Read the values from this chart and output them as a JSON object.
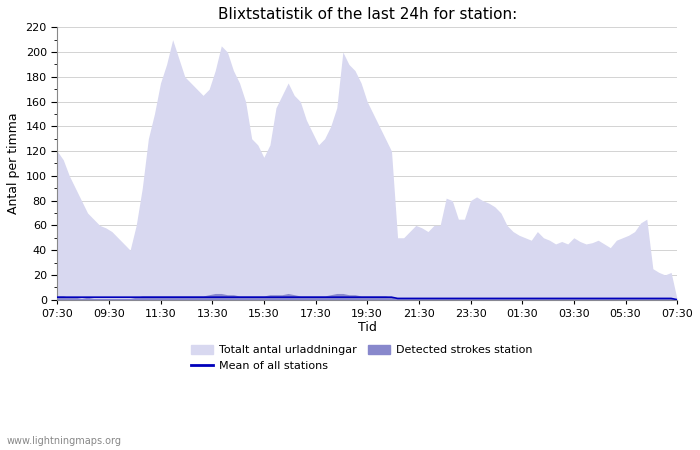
{
  "title": "Blixtstatistik of the last 24h for station:",
  "xlabel": "Tid",
  "ylabel": "Antal per timma",
  "watermark": "www.lightningmaps.org",
  "x_ticks": [
    "07:30",
    "09:30",
    "11:30",
    "13:30",
    "15:30",
    "17:30",
    "19:30",
    "21:30",
    "23:30",
    "01:30",
    "03:30",
    "05:30",
    "07:30"
  ],
  "ylim": [
    0,
    220
  ],
  "yticks": [
    0,
    20,
    40,
    60,
    80,
    100,
    120,
    140,
    160,
    180,
    200,
    220
  ],
  "color_area_light": "#d8d8f0",
  "color_area_dark": "#8888cc",
  "color_line": "#0000bb",
  "legend_labels": [
    "Totalt antal urladdningar",
    "Detected strokes station",
    "Mean of all stations"
  ],
  "totalt_antal": [
    120,
    113,
    100,
    90,
    80,
    70,
    65,
    60,
    58,
    55,
    50,
    45,
    40,
    60,
    90,
    130,
    150,
    175,
    190,
    210,
    195,
    180,
    175,
    170,
    165,
    170,
    185,
    205,
    200,
    185,
    175,
    160,
    130,
    125,
    115,
    125,
    155,
    165,
    175,
    165,
    160,
    145,
    135,
    125,
    130,
    140,
    155,
    200,
    190,
    185,
    175,
    160,
    150,
    140,
    130,
    120,
    50,
    50,
    55,
    60,
    58,
    55,
    60,
    60,
    82,
    80,
    65,
    65,
    80,
    83,
    80,
    78,
    75,
    70,
    60,
    55,
    52,
    50,
    48,
    55,
    50,
    48,
    45,
    47,
    45,
    50,
    47,
    45,
    46,
    48,
    45,
    42,
    48,
    50,
    52,
    55,
    62,
    65,
    25,
    22,
    20,
    22,
    0
  ],
  "detected_strokes": [
    3,
    3,
    2,
    2,
    1,
    2,
    1,
    1,
    1,
    1,
    1,
    1,
    1,
    2,
    3,
    3,
    3,
    3,
    3,
    3,
    3,
    3,
    3,
    3,
    3,
    4,
    5,
    5,
    4,
    4,
    3,
    3,
    3,
    3,
    3,
    4,
    4,
    4,
    5,
    4,
    3,
    3,
    3,
    3,
    3,
    4,
    5,
    5,
    4,
    4,
    3,
    3,
    3,
    3,
    3,
    2,
    1,
    1,
    1,
    1,
    1,
    1,
    1,
    1,
    1,
    1,
    1,
    1,
    1,
    1,
    1,
    1,
    1,
    1,
    1,
    1,
    1,
    1,
    1,
    1,
    1,
    1,
    1,
    1,
    1,
    1,
    1,
    1,
    1,
    1,
    1,
    1,
    1,
    1,
    1,
    1,
    1,
    1,
    1,
    1,
    1,
    1,
    0
  ],
  "mean_line": [
    2,
    2,
    2,
    2,
    2,
    2,
    2,
    2,
    2,
    2,
    2,
    2,
    2,
    2,
    2,
    2,
    2,
    2,
    2,
    2,
    2,
    2,
    2,
    2,
    2,
    2,
    2,
    2,
    2,
    2,
    2,
    2,
    2,
    2,
    2,
    2,
    2,
    2,
    2,
    2,
    2,
    2,
    2,
    2,
    2,
    2,
    2,
    2,
    2,
    2,
    2,
    2,
    2,
    2,
    2,
    2,
    1,
    1,
    1,
    1,
    1,
    1,
    1,
    1,
    1,
    1,
    1,
    1,
    1,
    1,
    1,
    1,
    1,
    1,
    1,
    1,
    1,
    1,
    1,
    1,
    1,
    1,
    1,
    1,
    1,
    1,
    1,
    1,
    1,
    1,
    1,
    1,
    1,
    1,
    1,
    1,
    1,
    1,
    1,
    1,
    1,
    1,
    0
  ]
}
